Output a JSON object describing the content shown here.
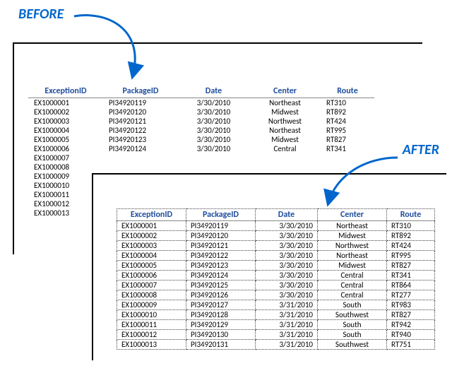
{
  "labels": {
    "before": "BEFORE",
    "after": "AFTER"
  },
  "columns": [
    "ExceptionID",
    "PackageID",
    "Date",
    "Center",
    "Route"
  ],
  "before_rows": [
    [
      "EX1000001",
      "PI34920119",
      "3/30/2010",
      "Northeast",
      "RT310"
    ],
    [
      "EX1000002",
      "PI34920120",
      "3/30/2010",
      "Midwest",
      "RT892"
    ],
    [
      "EX1000003",
      "PI34920121",
      "3/30/2010",
      "Northwest",
      "RT424"
    ],
    [
      "EX1000004",
      "PI34920122",
      "3/30/2010",
      "Northeast",
      "RT995"
    ],
    [
      "EX1000005",
      "PI34920123",
      "3/30/2010",
      "Midwest",
      "RT827"
    ],
    [
      "EX1000006",
      "PI34920124",
      "3/30/2010",
      "Central",
      "RT341"
    ],
    [
      "EX1000007",
      "",
      "",
      "",
      ""
    ],
    [
      "EX1000008",
      "",
      "",
      "",
      ""
    ],
    [
      "EX1000009",
      "",
      "",
      "",
      ""
    ],
    [
      "EX1000010",
      "",
      "",
      "",
      ""
    ],
    [
      "EX1000011",
      "",
      "",
      "",
      ""
    ],
    [
      "EX1000012",
      "",
      "",
      "",
      ""
    ],
    [
      "EX1000013",
      "",
      "",
      "",
      ""
    ]
  ],
  "after_rows": [
    [
      "EX1000001",
      "PI34920119",
      "3/30/2010",
      "Northeast",
      "RT310"
    ],
    [
      "EX1000002",
      "PI34920120",
      "3/30/2010",
      "Midwest",
      "RT892"
    ],
    [
      "EX1000003",
      "PI34920121",
      "3/30/2010",
      "Northwest",
      "RT424"
    ],
    [
      "EX1000004",
      "PI34920122",
      "3/30/2010",
      "Northeast",
      "RT995"
    ],
    [
      "EX1000005",
      "PI34920123",
      "3/30/2010",
      "Midwest",
      "RT827"
    ],
    [
      "EX1000006",
      "PI34920124",
      "3/30/2010",
      "Central",
      "RT341"
    ],
    [
      "EX1000007",
      "PI34920125",
      "3/30/2010",
      "Central",
      "RT864"
    ],
    [
      "EX1000008",
      "PI34920126",
      "3/30/2010",
      "Central",
      "RT277"
    ],
    [
      "EX1000009",
      "PI34920127",
      "3/31/2010",
      "South",
      "RT983"
    ],
    [
      "EX1000010",
      "PI34920128",
      "3/31/2010",
      "Southwest",
      "RT827"
    ],
    [
      "EX1000011",
      "PI34920129",
      "3/31/2010",
      "South",
      "RT942"
    ],
    [
      "EX1000012",
      "PI34920130",
      "3/31/2010",
      "South",
      "RT940"
    ],
    [
      "EX1000013",
      "PI34920131",
      "3/31/2010",
      "Southwest",
      "RT751"
    ]
  ],
  "style": {
    "header_color": "#1f4e9e",
    "arrow_color": "#0066cc",
    "before_col_widths": [
      90,
      90,
      85,
      85,
      60
    ],
    "after_col_widths": [
      85,
      85,
      75,
      85,
      55
    ],
    "before_align": [
      "left",
      "left",
      "center",
      "center",
      "left"
    ],
    "after_align": [
      "left",
      "left",
      "right",
      "center",
      "left"
    ]
  }
}
